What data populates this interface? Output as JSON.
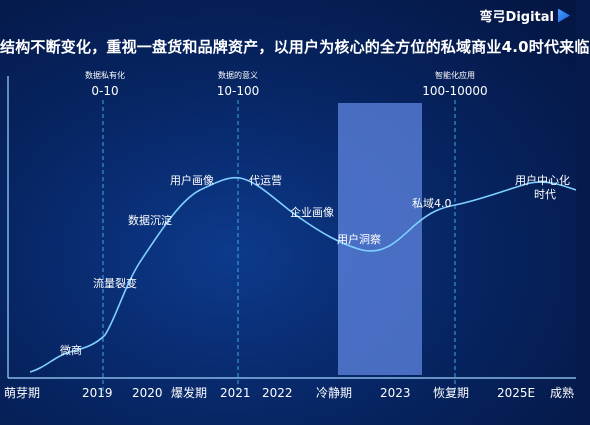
{
  "headline": "结构不断变化，重视一盘货和品牌资产，以用户为核心的全方位的私域商业4.0时代来临",
  "brand": "弯弓Digital",
  "phases": [
    {
      "caption": "数据私有化",
      "range": "0-10"
    },
    {
      "caption": "数据的意义",
      "range": "10-100"
    },
    {
      "caption": "智能化应用",
      "range": "100-10000"
    }
  ],
  "curve_labels": [
    {
      "text": "微商"
    },
    {
      "text": "流量裂变"
    },
    {
      "text": "数据沉淀"
    },
    {
      "text": "用户画像"
    },
    {
      "text": "代运营"
    },
    {
      "text": "企业画像"
    },
    {
      "text": "用户洞察"
    },
    {
      "text": "私域4.0"
    },
    {
      "text": "用户中心化"
    },
    {
      "text": "时代"
    }
  ],
  "axis_labels": [
    {
      "text": "萌芽期"
    },
    {
      "text": "2019"
    },
    {
      "text": "2020"
    },
    {
      "text": "爆发期"
    },
    {
      "text": "2021"
    },
    {
      "text": "2022"
    },
    {
      "text": "冷静期"
    },
    {
      "text": "2023"
    },
    {
      "text": "恢复期"
    },
    {
      "text": "2025E"
    },
    {
      "text": "成熟"
    }
  ],
  "colors": {
    "curve": "#7fd0ff",
    "dashed": "#3fa6e8",
    "highlight": "#5f86e0",
    "caption": "#8fc4ff"
  }
}
